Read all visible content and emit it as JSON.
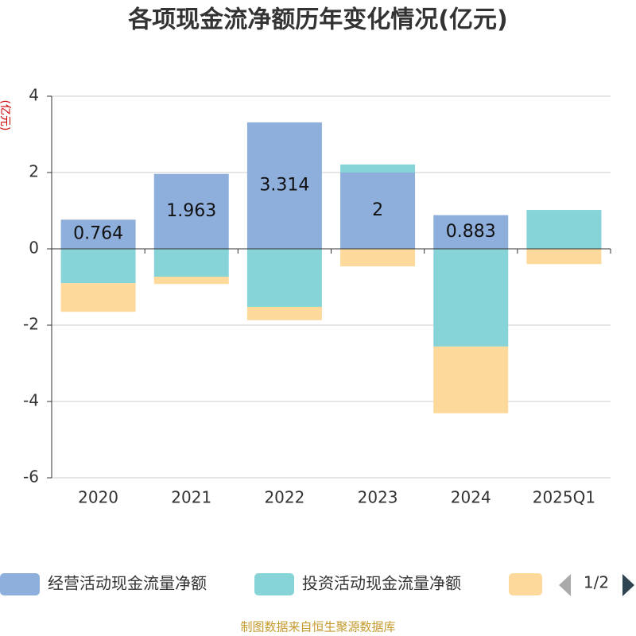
{
  "chart_data": {
    "type": "bar",
    "stacked": true,
    "title": "各项现金流净额历年变化情况(亿元)",
    "y_label": "(亿元)",
    "categories": [
      "2020",
      "2021",
      "2022",
      "2023",
      "2024",
      "2025Q1"
    ],
    "series": [
      {
        "name": "经营活动现金流量净额",
        "color": "#8eaedb",
        "values": [
          0.764,
          1.963,
          3.314,
          2,
          0.883,
          0
        ]
      },
      {
        "name": "投资活动现金流量净额",
        "color": "#86d4d8",
        "values": [
          -0.9,
          -0.73,
          -1.52,
          0.21,
          -2.56,
          1.02
        ]
      },
      {
        "color": "#fdd99b",
        "values": [
          -0.75,
          -0.19,
          -0.35,
          -0.46,
          -1.75,
          -0.4
        ]
      }
    ],
    "ylim": [
      -6,
      4
    ],
    "yticks": [
      -6,
      -4,
      -2,
      0,
      2,
      4
    ],
    "grid": true,
    "legend_page": "1/2",
    "footer": "制图数据来自恒生聚源数据库"
  }
}
